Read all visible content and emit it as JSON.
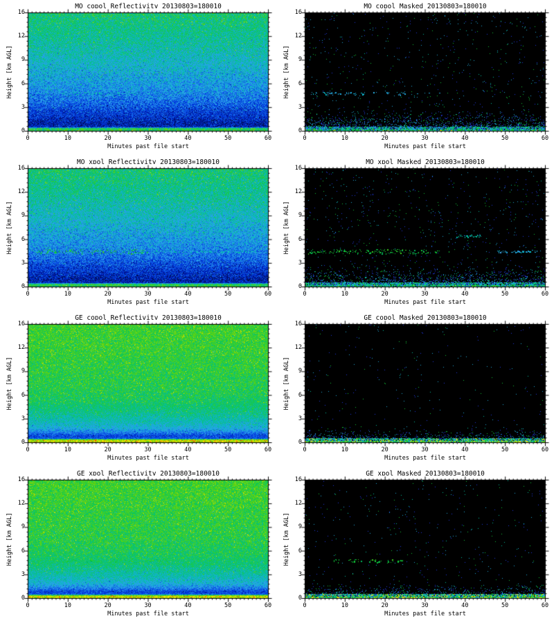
{
  "figure": {
    "background": "#ffffff",
    "axis_color": "#000000",
    "xlabel": "Minutes past file start",
    "ylabel": "Height [km AGL]",
    "x_tick_labels": [
      "0",
      "10",
      "20",
      "30",
      "40",
      "50",
      "60"
    ],
    "y_tick_labels_top_to_bottom": [
      "16",
      "12",
      "9",
      "6",
      "3",
      "0"
    ],
    "x_range_minutes": [
      0,
      60
    ],
    "y_range_km": [
      0,
      16
    ]
  },
  "palette": [
    "#000d50",
    "#0019a0",
    "#0038d8",
    "#1465e8",
    "#28a0e8",
    "#10b4c8",
    "#0abf8f",
    "#16c850",
    "#5ad314",
    "#b4dc00",
    "#ffe400",
    "#ff2800"
  ],
  "dot_colors": {
    "blue": "#2038e0",
    "cyan": "#20aade",
    "teal": "#00c0a0",
    "green": "#10c838",
    "yellow": "#ffe400"
  },
  "profiles": {
    "mo": [
      [
        0,
        6.8
      ],
      [
        0.012,
        6.9
      ],
      [
        0.02,
        6.3
      ],
      [
        0.028,
        1.6
      ],
      [
        0.05,
        1.1
      ],
      [
        0.1,
        1.6
      ],
      [
        0.16,
        2.2
      ],
      [
        0.24,
        3.0
      ],
      [
        0.34,
        3.8
      ],
      [
        0.46,
        4.4
      ],
      [
        0.6,
        5.1
      ],
      [
        0.72,
        5.6
      ],
      [
        0.85,
        6.1
      ],
      [
        1,
        6.5
      ]
    ],
    "ge": [
      [
        0,
        9.0
      ],
      [
        0.012,
        9.2
      ],
      [
        0.02,
        8.2
      ],
      [
        0.03,
        2.6
      ],
      [
        0.05,
        2.2
      ],
      [
        0.08,
        3.4
      ],
      [
        0.12,
        4.6
      ],
      [
        0.18,
        5.4
      ],
      [
        0.26,
        6.2
      ],
      [
        0.36,
        6.8
      ],
      [
        0.5,
        7.1
      ],
      [
        0.7,
        7.3
      ],
      [
        1,
        7.5
      ]
    ]
  },
  "chart_data": {
    "type": "heatmap",
    "layout": "4 rows x 2 columns",
    "x": {
      "label": "Minutes past file start",
      "range": [
        0,
        60
      ],
      "major_tick_step": 10,
      "minor_tick_step": 1
    },
    "y": {
      "label": "Height [km AGL]",
      "range": [
        0,
        16
      ],
      "tick_labels": [
        0,
        3,
        6,
        9,
        12,
        16
      ]
    },
    "panels": [
      {
        "name": "mo-copol-reflectivity",
        "title": "MO copol Reflectivity 20130803=180010",
        "kind": "reflectivity",
        "profile": "mo",
        "seed": 11,
        "noise": 1.4,
        "description": "Full-field speckle: green/teal aloft grading to cyan, blue, dark navy near 1-2 km; bright green/cyan surface band below 0.5 km; faint layer near 5 km between minutes 8-27",
        "features": [
          {
            "km": 5.0,
            "color": "teal",
            "thick": 2,
            "density": 0.45,
            "segments": [
              [
                8,
                13
              ],
              [
                15,
                19
              ],
              [
                20,
                23
              ],
              [
                25,
                27
              ]
            ]
          }
        ]
      },
      {
        "name": "mo-copol-masked",
        "title": "MO copol Masked 20130803=180010",
        "kind": "masked",
        "profile": "mo",
        "seed": 22,
        "sparse": 600,
        "description": "Black field with sparse blue/cyan specks; dashed cyan cloud layer at 5 km for minutes 1-25 plus isolated dots near 28-34; dense blue/cyan/green speckle band below 1 km with green surface line",
        "features": [
          {
            "km": 5.0,
            "color": "cyan",
            "thick": 2,
            "density": 0.7,
            "segments": [
              [
                1,
                3
              ],
              [
                4,
                9
              ],
              [
                10,
                13
              ],
              [
                14,
                15
              ],
              [
                17,
                18
              ],
              [
                20,
                21
              ],
              [
                23,
                25
              ]
            ],
            "dots": [
              28,
              31,
              33.5
            ]
          }
        ]
      },
      {
        "name": "mo-xpol-reflectivity",
        "title": "MO xpol Reflectivity 20130803=180010",
        "kind": "reflectivity",
        "profile": "mo",
        "seed": 33,
        "noise": 1.4,
        "description": "Same gradient speckle as MO copol; prominent green cloud blobs near 4.7 km from minutes 2-30 and a thin teal layer line out to minute 57; bright surface band",
        "features": [
          {
            "km": 4.7,
            "color": "green",
            "thick": 3,
            "density": 0.75,
            "segments": [
              [
                2,
                8
              ],
              [
                9,
                14
              ],
              [
                15,
                22
              ],
              [
                23,
                30
              ]
            ]
          },
          {
            "km": 4.7,
            "color": "teal",
            "thick": 1,
            "density": 0.5,
            "segments": [
              [
                32,
                38
              ],
              [
                40,
                47
              ],
              [
                48,
                57
              ]
            ]
          }
        ]
      },
      {
        "name": "mo-xpol-masked",
        "title": "MO xpol Masked 20130803=180010",
        "kind": "masked",
        "profile": "mo",
        "seed": 44,
        "sparse": 650,
        "description": "Black field; green cloud blobs at 4.7 km minutes 1-31 with small dashes to 37; short teal line at 6.8 km minutes 38-44; cyan/green line at 4.7 km minutes 48-58; dense speckle band below 1 km",
        "features": [
          {
            "km": 4.7,
            "color": "green",
            "thick": 3,
            "density": 0.8,
            "segments": [
              [
                1,
                5
              ],
              [
                6,
                14
              ],
              [
                15,
                25
              ],
              [
                26,
                31
              ]
            ]
          },
          {
            "km": 4.7,
            "color": "green",
            "thick": 1,
            "density": 0.6,
            "segments": [
              [
                32.5,
                33.5
              ],
              [
                35.5,
                36.5
              ]
            ]
          },
          {
            "km": 6.8,
            "color": "teal",
            "thick": 1.5,
            "density": 0.85,
            "segments": [
              [
                38,
                44
              ]
            ]
          },
          {
            "km": 4.7,
            "color": "cyan",
            "thick": 1.5,
            "density": 0.7,
            "segments": [
              [
                48,
                50.5
              ],
              [
                51.5,
                58
              ]
            ]
          }
        ]
      },
      {
        "name": "ge-copol-reflectivity",
        "title": "GE copol Reflectivity 20130803=180010",
        "kind": "reflectivity",
        "profile": "ge",
        "seed": 55,
        "noise": 1.0,
        "description": "Mostly uniform green speckle aloft grading to teal then cyan/blue below 3 km; thin dark navy layer near 1 km; bright yellow-green surface band with sparse red specks",
        "features": []
      },
      {
        "name": "ge-copol-masked",
        "title": "GE copol Masked 20130803=180010",
        "kind": "masked",
        "profile": "ge",
        "seed": 66,
        "sparse": 250,
        "description": "Black field with very sparse specks; dense cyan/green/yellow speckle band below 1 km",
        "features": []
      },
      {
        "name": "ge-xpol-reflectivity",
        "title": "GE xpol Reflectivity 20130803=180010",
        "kind": "reflectivity",
        "profile": "ge",
        "seed": 77,
        "noise": 1.0,
        "description": "Green speckle field like GE copol; green cloud blobs near 5 km between minutes 8-35; bright yellow surface band with red specks",
        "features": [
          {
            "km": 5.0,
            "color": "green",
            "thick": 2.5,
            "density": 0.6,
            "segments": [
              [
                8,
                12
              ],
              [
                14,
                17
              ],
              [
                20,
                27
              ],
              [
                30,
                35
              ]
            ]
          }
        ]
      },
      {
        "name": "ge-xpol-masked",
        "title": "GE xpol Masked 20130803=180010",
        "kind": "masked",
        "profile": "ge",
        "seed": 88,
        "sparse": 350,
        "description": "Black field; green cloud blobs at 5 km minutes 7-25; sparse green specks; dense cyan/green/yellow band below 1 km",
        "features": [
          {
            "km": 5.0,
            "color": "green",
            "thick": 2,
            "density": 0.7,
            "segments": [
              [
                7,
                9
              ],
              [
                11,
                14
              ],
              [
                16,
                19
              ],
              [
                20.5,
                22
              ],
              [
                23,
                24.5
              ]
            ]
          }
        ]
      }
    ]
  }
}
